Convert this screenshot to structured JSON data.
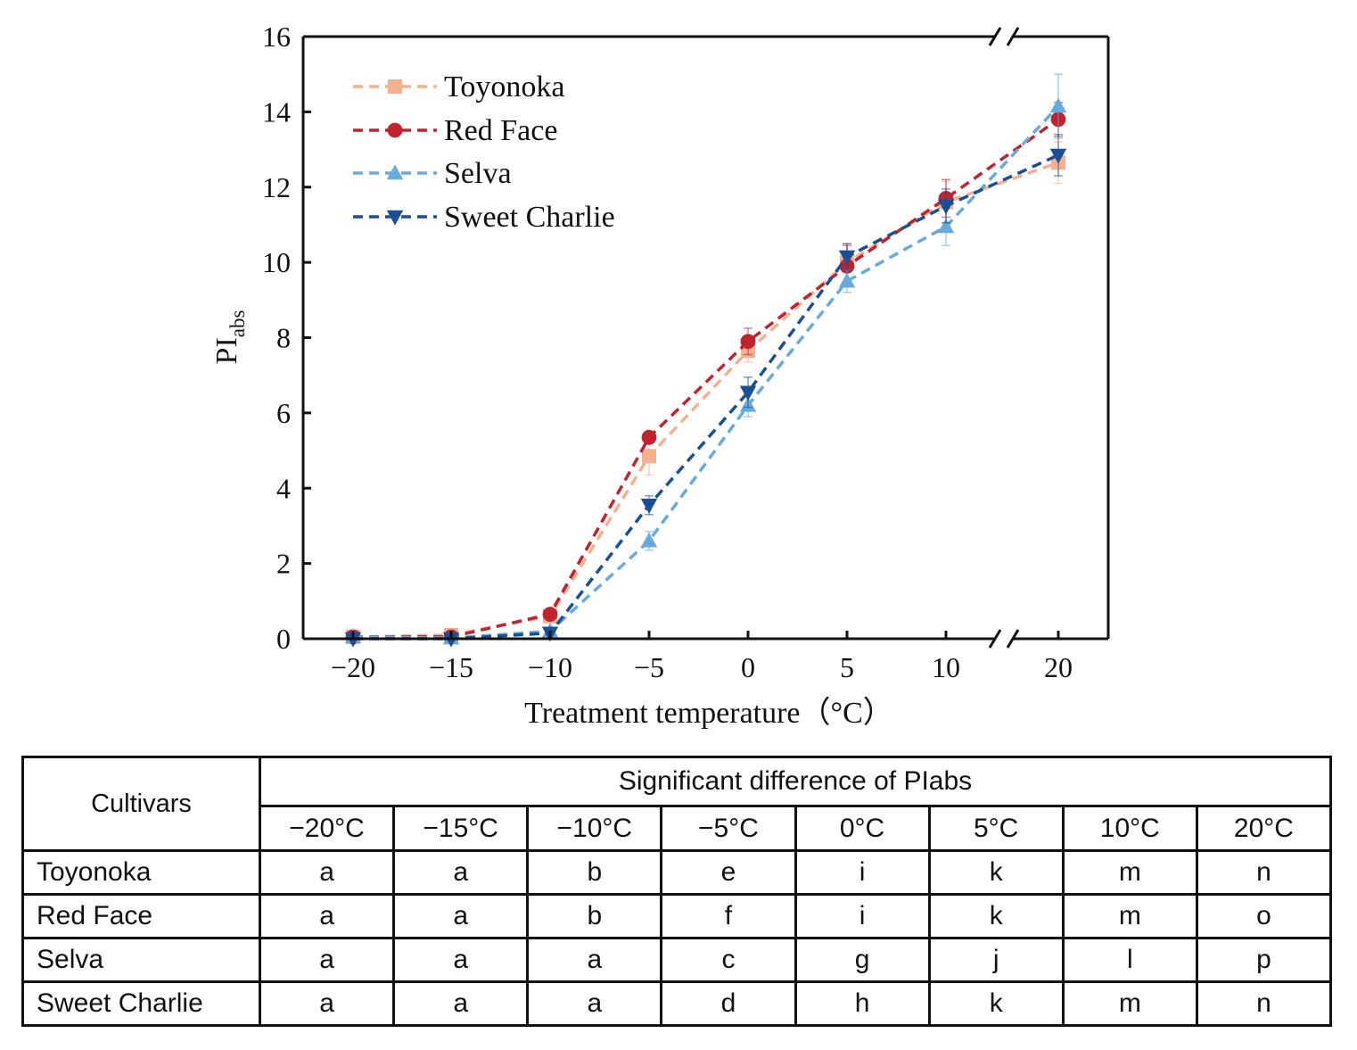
{
  "chart_data": {
    "type": "line",
    "ylabel_main": "PI",
    "ylabel_sub": "abs",
    "xlabel": "Treatment temperature（°C）",
    "categories": [
      "−20",
      "−15",
      "−10",
      "−5",
      "0",
      "5",
      "10",
      "20"
    ],
    "x_values": [
      -20,
      -15,
      -10,
      -5,
      0,
      5,
      10,
      20
    ],
    "x_axis_break": "between 10 and 20",
    "ylim": [
      0,
      16
    ],
    "yticks": [
      "0",
      "2",
      "4",
      "6",
      "8",
      "10",
      "12",
      "14",
      "16"
    ],
    "legend_position": "top-left",
    "series": [
      {
        "name": "Toyonoka",
        "color": "#f4b08f",
        "marker": "square",
        "values": [
          0.05,
          0.1,
          0.6,
          4.85,
          7.65,
          10.0,
          11.6,
          12.65
        ],
        "errors": [
          0.05,
          0.05,
          0.1,
          0.5,
          0.3,
          0.5,
          0.55,
          0.55
        ]
      },
      {
        "name": "Red Face",
        "color": "#c0232f",
        "marker": "circle",
        "values": [
          0.05,
          0.05,
          0.65,
          5.35,
          7.9,
          9.9,
          11.7,
          13.8
        ],
        "errors": [
          0.05,
          0.05,
          0.1,
          0.15,
          0.35,
          0.55,
          0.5,
          0.45
        ]
      },
      {
        "name": "Selva",
        "color": "#69aadd",
        "marker": "triangle-up",
        "values": [
          0.05,
          0.02,
          0.2,
          2.6,
          6.2,
          9.5,
          10.95,
          14.15
        ],
        "errors": [
          0.05,
          0.05,
          0.05,
          0.25,
          0.3,
          0.3,
          0.5,
          0.85
        ]
      },
      {
        "name": "Sweet Charlie",
        "color": "#1a4f96",
        "marker": "triangle-down",
        "values": [
          0.0,
          0.0,
          0.15,
          3.55,
          6.55,
          10.15,
          11.5,
          12.85
        ],
        "errors": [
          0.05,
          0.05,
          0.05,
          0.25,
          0.4,
          0.35,
          0.45,
          0.55
        ]
      }
    ]
  },
  "table": {
    "cultivars_header": "Cultivars",
    "group_header": "Significant difference of PIabs",
    "temps": [
      "−20°C",
      "−15°C",
      "−10°C",
      "−5°C",
      "0°C",
      "5°C",
      "10°C",
      "20°C"
    ],
    "rows": [
      {
        "name": "Toyonoka",
        "cells": [
          "a",
          "a",
          "b",
          "e",
          "i",
          "k",
          "m",
          "n"
        ]
      },
      {
        "name": "Red Face",
        "cells": [
          "a",
          "a",
          "b",
          "f",
          "i",
          "k",
          "m",
          "o"
        ]
      },
      {
        "name": "Selva",
        "cells": [
          "a",
          "a",
          "a",
          "c",
          "g",
          "j",
          "l",
          "p"
        ]
      },
      {
        "name": "Sweet Charlie",
        "cells": [
          "a",
          "a",
          "a",
          "d",
          "h",
          "k",
          "m",
          "n"
        ]
      }
    ]
  }
}
